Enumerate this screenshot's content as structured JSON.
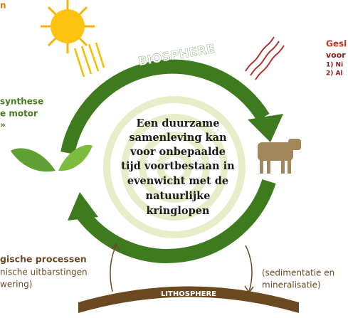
{
  "corner_label": "n",
  "biosphere": "BIOSPHERE",
  "lithosphere": "LITHOSPHERE",
  "right_note": {
    "title": "Gesl",
    "subtitle": "voor",
    "items": [
      "1) Ni",
      "2) Al"
    ]
  },
  "left_note": [
    "synthese",
    "e motor",
    "»"
  ],
  "center_text": [
    "Een duurzame",
    "samenleving  kan",
    "voor onbepaalde",
    "tijd voortbestaan in",
    "evenwicht  met de",
    "natuurlijke",
    "kringlopen"
  ],
  "bottom_left": {
    "title": "gische  processen",
    "lines": [
      "nische uitbarstingen",
      "wering)"
    ]
  },
  "bottom_right": [
    "(sedimentatie en",
    "mineralisatie)"
  ]
}
